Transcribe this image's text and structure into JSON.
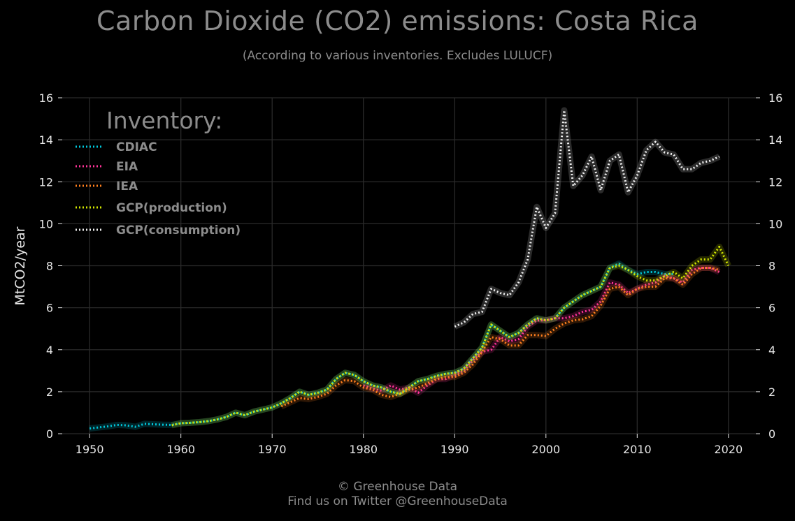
{
  "chart_data": {
    "type": "line",
    "title": "Carbon Dioxide (CO2) emissions: Costa Rica",
    "subtitle": "(According to various inventories. Excludes LULUCF)",
    "ylabel": "MtCO2/year",
    "xlabel": "",
    "xlim": [
      1947,
      2023
    ],
    "ylim": [
      0,
      16
    ],
    "x_ticks": [
      1950,
      1960,
      1970,
      1980,
      1990,
      2000,
      2010,
      2020
    ],
    "y_ticks": [
      0,
      2,
      4,
      6,
      8,
      10,
      12,
      14,
      16
    ],
    "grid": true,
    "legend_title": "Inventory:",
    "legend_position": "top-left",
    "series": [
      {
        "name": "CDIAC",
        "color": "#00c8dc",
        "x": [
          1950,
          1951,
          1952,
          1953,
          1954,
          1955,
          1956,
          1957,
          1958,
          1959,
          1960,
          1961,
          1962,
          1963,
          1964,
          1965,
          1966,
          1967,
          1968,
          1969,
          1970,
          1971,
          1972,
          1973,
          1974,
          1975,
          1976,
          1977,
          1978,
          1979,
          1980,
          1981,
          1982,
          1983,
          1984,
          1985,
          1986,
          1987,
          1988,
          1989,
          1990,
          1991,
          1992,
          1993,
          1994,
          1995,
          1996,
          1997,
          1998,
          1999,
          2000,
          2001,
          2002,
          2003,
          2004,
          2005,
          2006,
          2007,
          2008,
          2009,
          2010,
          2011,
          2012,
          2013,
          2014
        ],
        "y": [
          0.25,
          0.3,
          0.35,
          0.42,
          0.4,
          0.33,
          0.47,
          0.45,
          0.43,
          0.42,
          0.5,
          0.52,
          0.55,
          0.6,
          0.68,
          0.8,
          1.0,
          0.88,
          1.05,
          1.15,
          1.25,
          1.45,
          1.7,
          2.0,
          1.85,
          1.95,
          2.1,
          2.6,
          2.9,
          2.8,
          2.5,
          2.3,
          2.2,
          2.0,
          1.9,
          2.2,
          2.5,
          2.6,
          2.75,
          2.85,
          2.9,
          3.1,
          3.6,
          4.1,
          5.2,
          4.9,
          4.6,
          4.8,
          5.2,
          5.5,
          5.4,
          5.5,
          6.0,
          6.3,
          6.6,
          6.8,
          7.0,
          7.9,
          8.1,
          7.8,
          7.6,
          7.7,
          7.7,
          7.6,
          7.6
        ]
      },
      {
        "name": "EIA",
        "color": "#ff3399",
        "x": [
          1980,
          1981,
          1982,
          1983,
          1984,
          1985,
          1986,
          1987,
          1988,
          1989,
          1990,
          1991,
          1992,
          1993,
          1994,
          1995,
          1996,
          1997,
          1998,
          1999,
          2000,
          2001,
          2002,
          2003,
          2004,
          2005,
          2006,
          2007,
          2008,
          2009,
          2010,
          2011,
          2012,
          2013,
          2014,
          2015,
          2016,
          2017,
          2018,
          2019
        ],
        "y": [
          2.3,
          2.15,
          2.05,
          2.3,
          2.1,
          2.2,
          1.95,
          2.3,
          2.6,
          2.6,
          2.8,
          3.0,
          3.5,
          3.9,
          4.0,
          4.6,
          4.4,
          4.5,
          5.1,
          5.4,
          5.4,
          5.5,
          5.5,
          5.6,
          5.8,
          5.9,
          6.3,
          7.2,
          7.1,
          6.7,
          6.9,
          7.1,
          7.2,
          7.5,
          7.4,
          7.2,
          7.8,
          7.9,
          7.9,
          7.7
        ]
      },
      {
        "name": "IEA",
        "color": "#ff7f1e",
        "x": [
          1971,
          1972,
          1973,
          1974,
          1975,
          1976,
          1977,
          1978,
          1979,
          1980,
          1981,
          1982,
          1983,
          1984,
          1985,
          1986,
          1987,
          1988,
          1989,
          1990,
          1991,
          1992,
          1993,
          1994,
          1995,
          1996,
          1997,
          1998,
          1999,
          2000,
          2001,
          2002,
          2003,
          2004,
          2005,
          2006,
          2007,
          2008,
          2009,
          2010,
          2011,
          2012,
          2013,
          2014,
          2015,
          2016,
          2017,
          2018,
          2019
        ],
        "y": [
          1.3,
          1.5,
          1.7,
          1.65,
          1.75,
          1.9,
          2.3,
          2.55,
          2.5,
          2.2,
          2.1,
          1.85,
          1.75,
          1.9,
          2.1,
          2.2,
          2.4,
          2.6,
          2.7,
          2.7,
          2.9,
          3.3,
          3.9,
          4.6,
          4.5,
          4.2,
          4.2,
          4.7,
          4.7,
          4.65,
          5.0,
          5.25,
          5.4,
          5.45,
          5.6,
          6.1,
          6.9,
          7.0,
          6.6,
          6.9,
          7.0,
          7.0,
          7.4,
          7.4,
          7.1,
          7.6,
          7.9,
          7.9,
          7.8
        ]
      },
      {
        "name": "GCP(production)",
        "color": "#d2e600",
        "x": [
          1959,
          1960,
          1961,
          1962,
          1963,
          1964,
          1965,
          1966,
          1967,
          1968,
          1969,
          1970,
          1971,
          1972,
          1973,
          1974,
          1975,
          1976,
          1977,
          1978,
          1979,
          1980,
          1981,
          1982,
          1983,
          1984,
          1985,
          1986,
          1987,
          1988,
          1989,
          1990,
          1991,
          1992,
          1993,
          1994,
          1995,
          1996,
          1997,
          1998,
          1999,
          2000,
          2001,
          2002,
          2003,
          2004,
          2005,
          2006,
          2007,
          2008,
          2009,
          2010,
          2011,
          2012,
          2013,
          2014,
          2015,
          2016,
          2017,
          2018,
          2019,
          2020
        ],
        "y": [
          0.4,
          0.5,
          0.52,
          0.55,
          0.6,
          0.68,
          0.8,
          1.0,
          0.88,
          1.05,
          1.15,
          1.25,
          1.45,
          1.7,
          2.0,
          1.85,
          1.95,
          2.1,
          2.6,
          2.9,
          2.8,
          2.5,
          2.3,
          2.2,
          2.0,
          1.9,
          2.2,
          2.5,
          2.6,
          2.75,
          2.85,
          2.9,
          3.1,
          3.6,
          4.1,
          5.2,
          4.9,
          4.6,
          4.8,
          5.2,
          5.5,
          5.4,
          5.5,
          6.0,
          6.3,
          6.6,
          6.8,
          7.0,
          7.9,
          8.0,
          7.8,
          7.5,
          7.3,
          7.3,
          7.5,
          7.7,
          7.4,
          8.0,
          8.3,
          8.3,
          8.9,
          8.0
        ]
      },
      {
        "name": "GCP(consumption)",
        "color": "#f0f0f0",
        "x": [
          1990,
          1991,
          1992,
          1993,
          1994,
          1995,
          1996,
          1997,
          1998,
          1999,
          2000,
          2001,
          2002,
          2003,
          2004,
          2005,
          2006,
          2007,
          2008,
          2009,
          2010,
          2011,
          2012,
          2013,
          2014,
          2015,
          2016,
          2017,
          2018,
          2019
        ],
        "y": [
          5.1,
          5.3,
          5.7,
          5.8,
          6.9,
          6.7,
          6.6,
          7.2,
          8.3,
          10.8,
          9.8,
          10.5,
          15.4,
          11.8,
          12.3,
          13.2,
          11.6,
          13.0,
          13.3,
          11.5,
          12.3,
          13.5,
          13.9,
          13.4,
          13.3,
          12.6,
          12.6,
          12.9,
          13.0,
          13.2
        ]
      }
    ]
  },
  "footer": {
    "credit_line1": "© Greenhouse Data",
    "credit_line2": "Find us on Twitter @GreenhouseData"
  }
}
